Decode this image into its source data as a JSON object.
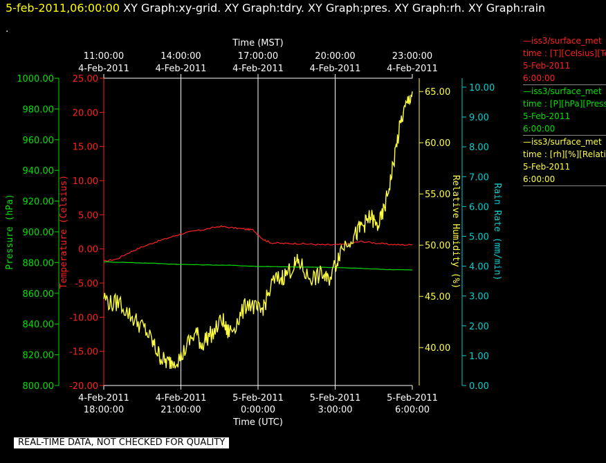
{
  "header": {
    "date": "5-feb-2011,06:00:00",
    "graphs": "XY Graph:xy-grid.  XY Graph:tdry.  XY Graph:pres.  XY Graph:rh.  XY Graph:rain",
    "dot": "."
  },
  "footer": "REAL-TIME DATA, NOT CHECKED FOR QUALITY",
  "legend": [
    {
      "name": "—iss3/surface_met",
      "line2": "time : [T][Celsius][Temperature]",
      "line3": "5-Feb-2011",
      "line4": "6:00:00",
      "color": "#ff2020"
    },
    {
      "name": "—iss3/surface_met",
      "line2": "time : [P][hPa][Pressure]",
      "line3": "5-Feb-2011",
      "line4": "6:00:00",
      "color": "#00e000"
    },
    {
      "name": "—iss3/surface_met",
      "line2": "time : [rh][%][Relative Humidity]",
      "line3": "5-Feb-2011",
      "line4": "6:00:00",
      "color": "#ffff40"
    }
  ],
  "chart_data": {
    "type": "line",
    "x_top_title": "Time (MST)",
    "x_bottom_title": "Time (UTC)",
    "x_range_hours": [
      0,
      12
    ],
    "x_top_ticks": [
      {
        "h": 0,
        "time": "11:00:00",
        "date": "4-Feb-2011"
      },
      {
        "h": 3,
        "time": "14:00:00",
        "date": "4-Feb-2011"
      },
      {
        "h": 6,
        "time": "17:00:00",
        "date": "4-Feb-2011"
      },
      {
        "h": 9,
        "time": "20:00:00",
        "date": "4-Feb-2011"
      },
      {
        "h": 12,
        "time": "23:00:00",
        "date": "4-Feb-2011"
      }
    ],
    "x_bottom_ticks": [
      {
        "h": 0,
        "date": "4-Feb-2011",
        "time": "18:00:00"
      },
      {
        "h": 3,
        "date": "4-Feb-2011",
        "time": "21:00:00"
      },
      {
        "h": 6,
        "date": "5-Feb-2011",
        "time": "0:00:00"
      },
      {
        "h": 9,
        "date": "5-Feb-2011",
        "time": "3:00:00"
      },
      {
        "h": 12,
        "date": "5-Feb-2011",
        "time": "6:00:00"
      }
    ],
    "axes": {
      "pressure": {
        "label": "Pressure (hPa)",
        "color": "#00e000",
        "range": [
          800,
          1000
        ],
        "ticks": [
          "800.00",
          "820.00",
          "840.00",
          "860.00",
          "880.00",
          "900.00",
          "920.00",
          "940.00",
          "960.00",
          "980.00",
          "1000.00"
        ]
      },
      "temperature": {
        "label": "Temperature (Celsius)",
        "color": "#ff2020",
        "range": [
          -20,
          25
        ],
        "ticks": [
          "-20.00",
          "-15.00",
          "-10.00",
          "-5.00",
          "0.00",
          "5.00",
          "10.00",
          "15.00",
          "20.00",
          "25.00"
        ]
      },
      "humidity": {
        "label": "Relative Humidity (%)",
        "color": "#ffff40",
        "range": [
          36.3,
          66.3
        ],
        "ticks": [
          "40.00",
          "45.00",
          "50.00",
          "55.00",
          "60.00",
          "65.00"
        ]
      },
      "rain": {
        "label": "Rain Rate (mm/min)",
        "color": "#00d0d0",
        "range": [
          0,
          10.3
        ],
        "ticks": [
          "0.00",
          "1.00",
          "2.00",
          "3.00",
          "4.00",
          "5.00",
          "6.00",
          "7.00",
          "8.00",
          "9.00",
          "10.00"
        ]
      }
    },
    "series": [
      {
        "name": "iss3/surface_met T",
        "axis": "temperature",
        "color": "#ff2020",
        "points": [
          [
            0,
            -1.8
          ],
          [
            0.5,
            -1.5
          ],
          [
            1,
            -0.5
          ],
          [
            1.5,
            0.3
          ],
          [
            2,
            1.0
          ],
          [
            2.5,
            1.6
          ],
          [
            3,
            2.2
          ],
          [
            3.5,
            2.6
          ],
          [
            4,
            2.9
          ],
          [
            4.5,
            3.3
          ],
          [
            5,
            3.1
          ],
          [
            5.5,
            2.9
          ],
          [
            5.8,
            2.8
          ],
          [
            6.2,
            1.4
          ],
          [
            6.5,
            0.9
          ],
          [
            7,
            0.8
          ],
          [
            7.5,
            0.8
          ],
          [
            8,
            0.7
          ],
          [
            8.5,
            0.6
          ],
          [
            9,
            0.6
          ],
          [
            9.5,
            0.7
          ],
          [
            10,
            1.1
          ],
          [
            10.5,
            0.9
          ],
          [
            11,
            0.7
          ],
          [
            11.5,
            0.6
          ],
          [
            12,
            0.6
          ]
        ]
      },
      {
        "name": "iss3/surface_met P",
        "axis": "pressure",
        "color": "#00e000",
        "points": [
          [
            0,
            880.5
          ],
          [
            1,
            880.0
          ],
          [
            2,
            879.5
          ],
          [
            3,
            878.8
          ],
          [
            4,
            878.5
          ],
          [
            5,
            878.2
          ],
          [
            6,
            877.5
          ],
          [
            7,
            877.3
          ],
          [
            8,
            877.0
          ],
          [
            9,
            876.8
          ],
          [
            10,
            876.2
          ],
          [
            11,
            875.5
          ],
          [
            12,
            875.2
          ]
        ]
      },
      {
        "name": "iss3/surface_met rh",
        "axis": "humidity",
        "color": "#ffff40",
        "points": [
          [
            0,
            45.0
          ],
          [
            0.3,
            44.2
          ],
          [
            0.6,
            44.5
          ],
          [
            1,
            43.2
          ],
          [
            1.3,
            42.5
          ],
          [
            1.6,
            41.8
          ],
          [
            1.9,
            40.5
          ],
          [
            2.1,
            39.5
          ],
          [
            2.3,
            38.8
          ],
          [
            2.5,
            38.5
          ],
          [
            2.7,
            38.8
          ],
          [
            3,
            39.0
          ],
          [
            3.3,
            40.5
          ],
          [
            3.6,
            41.5
          ],
          [
            3.8,
            40.2
          ],
          [
            4,
            41.0
          ],
          [
            4.3,
            41.5
          ],
          [
            4.6,
            42.8
          ],
          [
            4.8,
            41.5
          ],
          [
            5,
            41.8
          ],
          [
            5.3,
            43.0
          ],
          [
            5.6,
            44.5
          ],
          [
            5.9,
            43.8
          ],
          [
            6.1,
            43.5
          ],
          [
            6.3,
            44.5
          ],
          [
            6.6,
            46.5
          ],
          [
            6.9,
            46.8
          ],
          [
            7.1,
            47.2
          ],
          [
            7.4,
            48.0
          ],
          [
            7.6,
            48.4
          ],
          [
            7.9,
            47.0
          ],
          [
            8.2,
            46.8
          ],
          [
            8.5,
            47.2
          ],
          [
            8.7,
            46.5
          ],
          [
            9,
            48.0
          ],
          [
            9.2,
            49.5
          ],
          [
            9.5,
            50.5
          ],
          [
            9.8,
            51.0
          ],
          [
            10,
            51.8
          ],
          [
            10.2,
            52.2
          ],
          [
            10.4,
            52.8
          ],
          [
            10.6,
            51.8
          ],
          [
            10.8,
            52.5
          ],
          [
            11,
            54.5
          ],
          [
            11.2,
            57.0
          ],
          [
            11.4,
            60.0
          ],
          [
            11.6,
            62.5
          ],
          [
            11.8,
            63.8
          ],
          [
            12,
            65.0
          ]
        ]
      }
    ]
  }
}
